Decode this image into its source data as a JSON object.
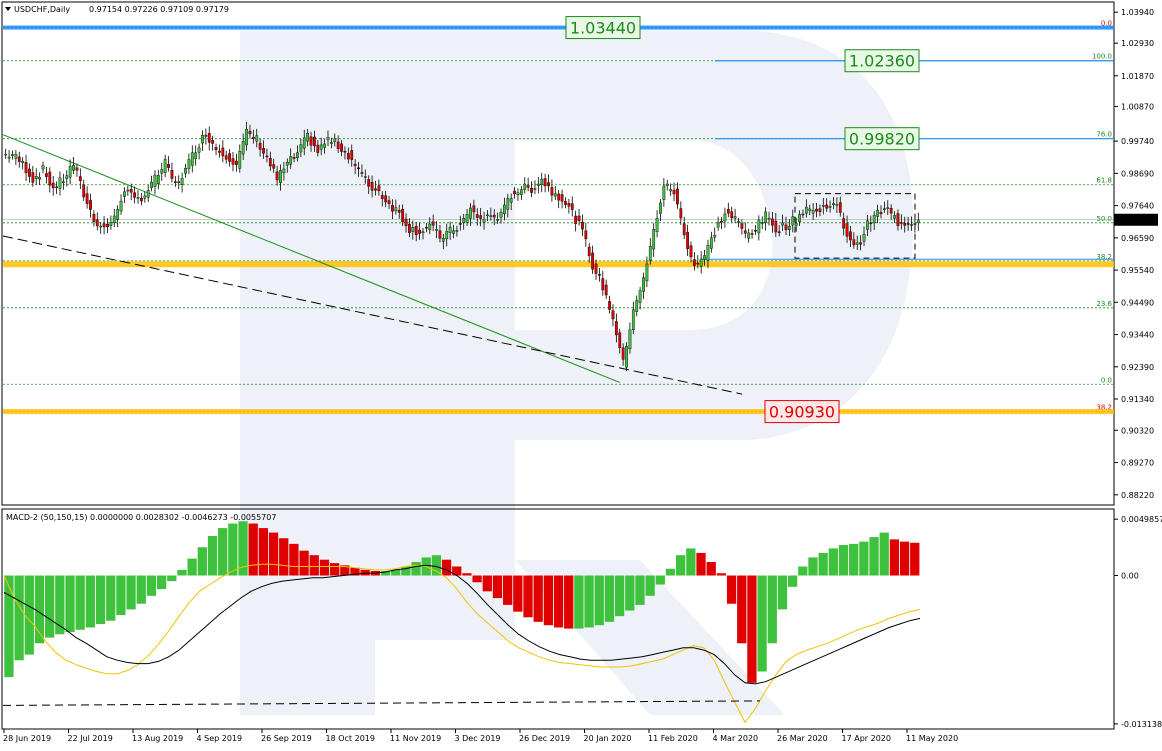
{
  "header": {
    "symbol": "USDCHF,Daily",
    "ohlc": "0.97154 0.97226 0.97109 0.97179",
    "macd_title": "MACD-2 (50,150,15) 0.0000000 0.0028302 -0.0046273 -0.0055707"
  },
  "colors": {
    "bull": "#3ec23e",
    "bear": "#e00000",
    "fib_green": "#1a8c1a",
    "fib_red": "#e00000",
    "level_green": "#1a8c1a",
    "level_red": "#e00000",
    "support_yellow": "#ffc000",
    "support_blue": "#1e90ff",
    "signal_line": "#f2c200",
    "macd_line": "#000000",
    "grid": "#1a8c1a"
  },
  "chart_data": [
    {
      "type": "candlestick",
      "title": "USDCHF,Daily",
      "ylim": [
        0.8792,
        1.0424
      ],
      "y_ticks": [
        "1.03940",
        "1.02930",
        "1.01870",
        "1.00870",
        "0.99740",
        "0.98690",
        "0.97640",
        "0.96590",
        "0.95540",
        "0.94490",
        "0.93440",
        "0.92390",
        "0.91340",
        "0.90320",
        "0.89270",
        "0.88220"
      ],
      "current_price": "0.97179",
      "x_labels": [
        "28 Jun 2019",
        "22 Jul 2019",
        "13 Aug 2019",
        "4 Sep 2019",
        "26 Sep 2019",
        "18 Oct 2019",
        "11 Nov 2019",
        "3 Dec 2019",
        "26 Dec 2019",
        "20 Jan 2020",
        "11 Feb 2020",
        "4 Mar 2020",
        "26 Mar 2020",
        "17 Apr 2020",
        "11 May 2020"
      ],
      "fib_levels_upper": [
        {
          "label": "0.0",
          "value": 1.0344
        },
        {
          "label": "100.0",
          "value": 1.0236
        },
        {
          "label": "76.0",
          "value": 0.9982
        },
        {
          "label": "61.8",
          "value": 0.9832
        },
        {
          "label": "50.0",
          "value": 0.9708
        },
        {
          "label": "38.2",
          "value": 0.9584
        }
      ],
      "fib_levels_lower": [
        {
          "label": "23.6",
          "value": 0.9431
        },
        {
          "label": "0.0",
          "value": 0.9182
        },
        {
          "label": "38.2",
          "value": 0.9093
        }
      ],
      "key_levels": [
        {
          "label": "1.03440",
          "value": 1.0344
        },
        {
          "label": "1.02360",
          "value": 1.0236
        },
        {
          "label": "0.99820",
          "value": 0.9982
        },
        {
          "label": "0.90930",
          "value": 0.9093
        }
      ],
      "support_band": 0.9573,
      "consolidation_box": {
        "top": 0.9803,
        "bottom": 0.9593
      },
      "price_path": [
        0.993,
        0.99,
        0.985,
        0.988,
        0.982,
        0.985,
        0.99,
        0.98,
        0.972,
        0.969,
        0.972,
        0.982,
        0.978,
        0.98,
        0.985,
        0.99,
        0.983,
        0.988,
        0.995,
        1.0,
        0.995,
        0.993,
        0.99,
        1.0,
        0.998,
        0.992,
        0.985,
        0.99,
        0.993,
        0.999,
        0.994,
        0.998,
        0.996,
        0.993,
        0.988,
        0.983,
        0.981,
        0.977,
        0.974,
        0.969,
        0.968,
        0.97,
        0.966,
        0.968,
        0.97,
        0.975,
        0.972,
        0.973,
        0.973,
        0.98,
        0.982,
        0.982,
        0.985,
        0.981,
        0.979,
        0.974,
        0.968,
        0.957,
        0.95,
        0.94,
        0.925,
        0.943,
        0.952,
        0.968,
        0.983,
        0.981,
        0.967,
        0.957,
        0.96,
        0.968,
        0.974,
        0.972,
        0.967,
        0.969,
        0.973,
        0.969,
        0.97,
        0.972,
        0.976,
        0.974,
        0.977,
        0.976,
        0.967,
        0.963,
        0.97,
        0.974,
        0.975,
        0.971,
        0.971,
        0.9718
      ]
    },
    {
      "type": "macd",
      "title": "MACD-2 (50,150,15)",
      "ylim": [
        -0.0135,
        0.0058
      ],
      "y_ticks": [
        "0.0049857",
        "0.00",
        "-0.013138"
      ],
      "histogram": [
        -0.009,
        -0.0075,
        -0.007,
        -0.006,
        -0.0055,
        -0.0052,
        -0.005,
        -0.0048,
        -0.0046,
        -0.0043,
        -0.004,
        -0.0035,
        -0.003,
        -0.0025,
        -0.0018,
        -0.0012,
        -0.0005,
        0.0005,
        0.0015,
        0.0025,
        0.0035,
        0.0042,
        0.0046,
        0.0048,
        0.0046,
        0.0042,
        0.0038,
        0.0033,
        0.0028,
        0.0022,
        0.0018,
        0.0014,
        0.0011,
        0.0009,
        0.0007,
        0.0005,
        0.0004,
        0.0004,
        0.0005,
        0.0008,
        0.0012,
        0.0016,
        0.0018,
        0.0014,
        0.0008,
        0.0002,
        -0.0006,
        -0.0014,
        -0.002,
        -0.0026,
        -0.0032,
        -0.0037,
        -0.0041,
        -0.0044,
        -0.0046,
        -0.0047,
        -0.0047,
        -0.0046,
        -0.0044,
        -0.0041,
        -0.0036,
        -0.0031,
        -0.0026,
        -0.0018,
        -0.0008,
        0.0006,
        0.0018,
        0.0024,
        0.002,
        0.0012,
        0.0002,
        -0.0025,
        -0.006,
        -0.0095,
        -0.0085,
        -0.006,
        -0.003,
        -0.001,
        0.0008,
        0.0016,
        0.002,
        0.0024,
        0.0027,
        0.0028,
        0.003,
        0.0034,
        0.0038,
        0.0032,
        0.003,
        0.0029
      ],
      "macd_line": [
        -0.0015,
        -0.002,
        -0.0025,
        -0.003,
        -0.0036,
        -0.0042,
        -0.0048,
        -0.0055,
        -0.006,
        -0.0066,
        -0.0072,
        -0.0075,
        -0.0077,
        -0.0078,
        -0.0078,
        -0.0076,
        -0.0072,
        -0.0066,
        -0.0058,
        -0.005,
        -0.0042,
        -0.0034,
        -0.0027,
        -0.002,
        -0.0014,
        -0.001,
        -0.0007,
        -0.0005,
        -0.0004,
        -0.0003,
        -0.0002,
        -0.0002,
        -0.0001,
        0.0,
        0.0001,
        0.0002,
        0.0002,
        0.0003,
        0.0005,
        0.0006,
        0.0008,
        0.0009,
        0.0008,
        0.0005,
        0.0,
        -0.0007,
        -0.0016,
        -0.0026,
        -0.0035,
        -0.0044,
        -0.0052,
        -0.0058,
        -0.0063,
        -0.0067,
        -0.007,
        -0.0072,
        -0.0074,
        -0.0075,
        -0.0075,
        -0.0075,
        -0.0074,
        -0.0073,
        -0.0072,
        -0.007,
        -0.0068,
        -0.0066,
        -0.0064,
        -0.0064,
        -0.0066,
        -0.007,
        -0.0078,
        -0.0088,
        -0.0095,
        -0.0096,
        -0.0094,
        -0.009,
        -0.0086,
        -0.0082,
        -0.0078,
        -0.0074,
        -0.007,
        -0.0066,
        -0.0062,
        -0.0058,
        -0.0054,
        -0.005,
        -0.0046,
        -0.0043,
        -0.004,
        -0.0038
      ],
      "signal_line": [
        0.0,
        -0.002,
        -0.0035,
        -0.0045,
        -0.0058,
        -0.0068,
        -0.0075,
        -0.0079,
        -0.0082,
        -0.0085,
        -0.0087,
        -0.0087,
        -0.0084,
        -0.0079,
        -0.0071,
        -0.0061,
        -0.0049,
        -0.0036,
        -0.0024,
        -0.0014,
        -0.0008,
        -0.0002,
        0.0003,
        0.0007,
        0.0009,
        0.001,
        0.001,
        0.0009,
        0.0008,
        0.0008,
        0.0008,
        0.0008,
        0.0008,
        0.0008,
        0.0007,
        0.0006,
        0.0005,
        0.0005,
        0.0006,
        0.0008,
        0.0009,
        0.0008,
        0.0004,
        -0.0002,
        -0.0012,
        -0.0024,
        -0.0034,
        -0.0042,
        -0.005,
        -0.0058,
        -0.0064,
        -0.0068,
        -0.0072,
        -0.0075,
        -0.0077,
        -0.0078,
        -0.0079,
        -0.008,
        -0.0081,
        -0.0081,
        -0.0081,
        -0.008,
        -0.0078,
        -0.0076,
        -0.0074,
        -0.007,
        -0.0066,
        -0.0062,
        -0.0064,
        -0.0075,
        -0.0094,
        -0.0112,
        -0.013,
        -0.0118,
        -0.0102,
        -0.0088,
        -0.0076,
        -0.007,
        -0.0066,
        -0.0063,
        -0.006,
        -0.0056,
        -0.0052,
        -0.0048,
        -0.0045,
        -0.0042,
        -0.0038,
        -0.0035,
        -0.0032,
        -0.003
      ]
    }
  ]
}
